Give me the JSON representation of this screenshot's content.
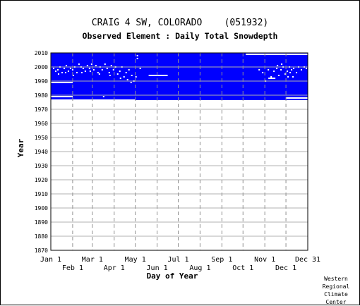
{
  "chart_data": {
    "type": "scatter",
    "title": "CRAIG 4 SW, COLORADO    (051932)",
    "subtitle": "Observed Element : Daily Total Snowdepth",
    "xlabel": "Day of Year",
    "ylabel": "Year",
    "xlim": [
      1,
      366
    ],
    "ylim": [
      1870,
      2010
    ],
    "y_ticks": [
      2010,
      2000,
      1990,
      1980,
      1970,
      1960,
      1950,
      1940,
      1930,
      1920,
      1910,
      1900,
      1890,
      1880,
      1870
    ],
    "x_ticks_upper": [
      {
        "label": "Jan 1",
        "day": 1
      },
      {
        "label": "Mar 1",
        "day": 60
      },
      {
        "label": "May 1",
        "day": 121
      },
      {
        "label": "Jul 1",
        "day": 182
      },
      {
        "label": "Sep 1",
        "day": 244
      },
      {
        "label": "Nov 1",
        "day": 305
      },
      {
        "label": "Dec 31",
        "day": 366
      }
    ],
    "x_ticks_lower": [
      {
        "label": "Feb 1",
        "day": 32
      },
      {
        "label": "Apr 1",
        "day": 91
      },
      {
        "label": "Jun 1",
        "day": 152
      },
      {
        "label": "Aug 1",
        "day": 213
      },
      {
        "label": "Oct 1",
        "day": 274
      },
      {
        "label": "Dec 1",
        "day": 335
      }
    ],
    "grid": true,
    "observed_fill_color": "#0000ff",
    "missing_color": "#ffffff",
    "observed_region": [
      {
        "day_start": 1,
        "day_end": 366,
        "year_start": 1984,
        "year_end": 2010
      },
      {
        "day_start": 1,
        "day_end": 121,
        "year_start": 1977,
        "year_end": 1984
      },
      {
        "day_start": 121,
        "day_end": 335,
        "year_start": 1976.5,
        "year_end": 1984
      },
      {
        "day_start": 335,
        "day_end": 366,
        "year_start": 1976.5,
        "year_end": 1984
      }
    ],
    "missing_segments": [
      {
        "day_start": 1,
        "day_end": 32,
        "year": 1979
      },
      {
        "day_start": 1,
        "day_end": 32,
        "year": 1989
      },
      {
        "day_start": 140,
        "day_end": 167,
        "year": 1994
      },
      {
        "day_start": 335,
        "day_end": 366,
        "year": 1978
      },
      {
        "day_start": 278,
        "day_end": 366,
        "year": 2009
      },
      {
        "day_start": 310,
        "day_end": 320,
        "year": 1992
      }
    ],
    "missing_points": [
      [
        5,
        1999
      ],
      [
        8,
        1997
      ],
      [
        11,
        1998
      ],
      [
        14,
        2000
      ],
      [
        17,
        1996
      ],
      [
        20,
        1999
      ],
      [
        23,
        2001
      ],
      [
        26,
        1997
      ],
      [
        29,
        1999
      ],
      [
        32,
        1998
      ],
      [
        35,
        2000
      ],
      [
        38,
        1996
      ],
      [
        41,
        2002
      ],
      [
        44,
        2000
      ],
      [
        47,
        1999
      ],
      [
        50,
        1997
      ],
      [
        53,
        2001
      ],
      [
        56,
        1999
      ],
      [
        59,
        2002
      ],
      [
        62,
        1998
      ],
      [
        65,
        2001
      ],
      [
        68,
        1996
      ],
      [
        71,
        2000
      ],
      [
        74,
        1998
      ],
      [
        78,
        2002
      ],
      [
        81,
        1999
      ],
      [
        84,
        1996
      ],
      [
        87,
        2001
      ],
      [
        90,
        1998
      ],
      [
        93,
        2000
      ],
      [
        96,
        1995
      ],
      [
        99,
        1997
      ],
      [
        102,
        2000
      ],
      [
        105,
        1993
      ],
      [
        108,
        1996
      ],
      [
        112,
        1998
      ],
      [
        116,
        1994
      ],
      [
        119,
        1990
      ],
      [
        122,
        1993
      ],
      [
        124,
        2008
      ],
      [
        128,
        1999
      ],
      [
        12,
        1995
      ],
      [
        22,
        1996
      ],
      [
        33,
        1994
      ],
      [
        45,
        1996
      ],
      [
        57,
        1997
      ],
      [
        70,
        1995
      ],
      [
        85,
        1994
      ],
      [
        100,
        1992
      ],
      [
        110,
        1991
      ],
      [
        115,
        1989
      ],
      [
        297,
        1998
      ],
      [
        302,
        1996
      ],
      [
        306,
        1990
      ],
      [
        310,
        1998
      ],
      [
        314,
        1993
      ],
      [
        318,
        1997
      ],
      [
        322,
        1999
      ],
      [
        325,
        1994
      ],
      [
        328,
        1998
      ],
      [
        331,
        2000
      ],
      [
        334,
        1995
      ],
      [
        337,
        1997
      ],
      [
        340,
        2000
      ],
      [
        343,
        1998
      ],
      [
        346,
        1999
      ],
      [
        350,
        1996
      ],
      [
        353,
        2000
      ],
      [
        357,
        1998
      ],
      [
        361,
        2000
      ],
      [
        364,
        1999
      ],
      [
        323,
        2001
      ],
      [
        329,
        2002
      ],
      [
        338,
        1993
      ],
      [
        341,
        1996
      ],
      [
        345,
        1993
      ],
      [
        284,
        2009
      ],
      [
        292,
        2009
      ],
      [
        300,
        2009
      ],
      [
        308,
        2009
      ],
      [
        316,
        2009
      ],
      [
        324,
        2009
      ],
      [
        332,
        2009
      ],
      [
        340,
        2009
      ],
      [
        348,
        2009
      ],
      [
        356,
        2009
      ],
      [
        362,
        2009
      ],
      [
        76,
        1979
      ],
      [
        124,
        2006
      ]
    ]
  },
  "credit": [
    "Western",
    "Regional",
    "Climate",
    "Center"
  ]
}
